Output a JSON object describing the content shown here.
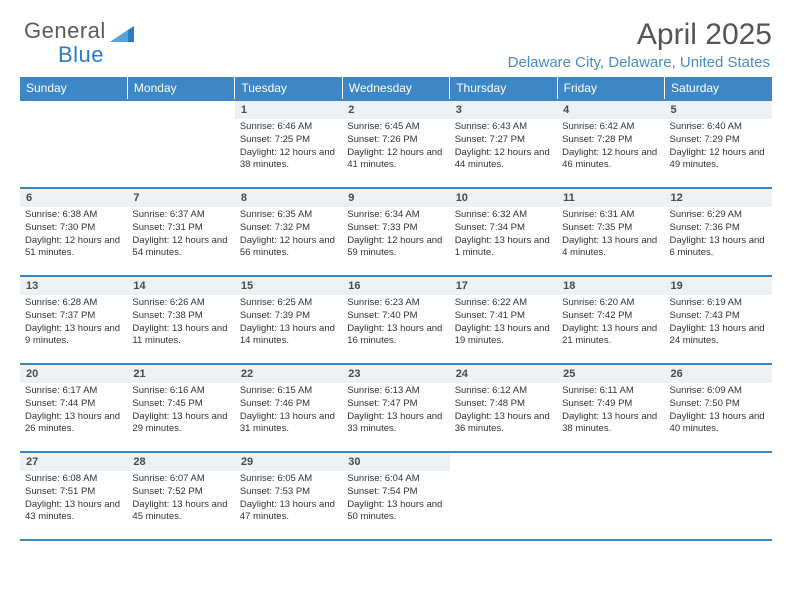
{
  "brand": {
    "part1": "General",
    "part2": "Blue"
  },
  "title": "April 2025",
  "location": "Delaware City, Delaware, United States",
  "colors": {
    "header_bg": "#3d87c6",
    "header_text": "#ffffff",
    "daynum_bg": "#eef1f3",
    "border": "#3d87c6",
    "location": "#4a8bc2",
    "logo_gray": "#5a5a5a",
    "logo_blue": "#2b7cc0"
  },
  "weekdays": [
    "Sunday",
    "Monday",
    "Tuesday",
    "Wednesday",
    "Thursday",
    "Friday",
    "Saturday"
  ],
  "weeks": [
    [
      {
        "empty": true
      },
      {
        "empty": true
      },
      {
        "num": "1",
        "sunrise": "6:46 AM",
        "sunset": "7:25 PM",
        "daylight": "12 hours and 38 minutes."
      },
      {
        "num": "2",
        "sunrise": "6:45 AM",
        "sunset": "7:26 PM",
        "daylight": "12 hours and 41 minutes."
      },
      {
        "num": "3",
        "sunrise": "6:43 AM",
        "sunset": "7:27 PM",
        "daylight": "12 hours and 44 minutes."
      },
      {
        "num": "4",
        "sunrise": "6:42 AM",
        "sunset": "7:28 PM",
        "daylight": "12 hours and 46 minutes."
      },
      {
        "num": "5",
        "sunrise": "6:40 AM",
        "sunset": "7:29 PM",
        "daylight": "12 hours and 49 minutes."
      }
    ],
    [
      {
        "num": "6",
        "sunrise": "6:38 AM",
        "sunset": "7:30 PM",
        "daylight": "12 hours and 51 minutes."
      },
      {
        "num": "7",
        "sunrise": "6:37 AM",
        "sunset": "7:31 PM",
        "daylight": "12 hours and 54 minutes."
      },
      {
        "num": "8",
        "sunrise": "6:35 AM",
        "sunset": "7:32 PM",
        "daylight": "12 hours and 56 minutes."
      },
      {
        "num": "9",
        "sunrise": "6:34 AM",
        "sunset": "7:33 PM",
        "daylight": "12 hours and 59 minutes."
      },
      {
        "num": "10",
        "sunrise": "6:32 AM",
        "sunset": "7:34 PM",
        "daylight": "13 hours and 1 minute."
      },
      {
        "num": "11",
        "sunrise": "6:31 AM",
        "sunset": "7:35 PM",
        "daylight": "13 hours and 4 minutes."
      },
      {
        "num": "12",
        "sunrise": "6:29 AM",
        "sunset": "7:36 PM",
        "daylight": "13 hours and 6 minutes."
      }
    ],
    [
      {
        "num": "13",
        "sunrise": "6:28 AM",
        "sunset": "7:37 PM",
        "daylight": "13 hours and 9 minutes."
      },
      {
        "num": "14",
        "sunrise": "6:26 AM",
        "sunset": "7:38 PM",
        "daylight": "13 hours and 11 minutes."
      },
      {
        "num": "15",
        "sunrise": "6:25 AM",
        "sunset": "7:39 PM",
        "daylight": "13 hours and 14 minutes."
      },
      {
        "num": "16",
        "sunrise": "6:23 AM",
        "sunset": "7:40 PM",
        "daylight": "13 hours and 16 minutes."
      },
      {
        "num": "17",
        "sunrise": "6:22 AM",
        "sunset": "7:41 PM",
        "daylight": "13 hours and 19 minutes."
      },
      {
        "num": "18",
        "sunrise": "6:20 AM",
        "sunset": "7:42 PM",
        "daylight": "13 hours and 21 minutes."
      },
      {
        "num": "19",
        "sunrise": "6:19 AM",
        "sunset": "7:43 PM",
        "daylight": "13 hours and 24 minutes."
      }
    ],
    [
      {
        "num": "20",
        "sunrise": "6:17 AM",
        "sunset": "7:44 PM",
        "daylight": "13 hours and 26 minutes."
      },
      {
        "num": "21",
        "sunrise": "6:16 AM",
        "sunset": "7:45 PM",
        "daylight": "13 hours and 29 minutes."
      },
      {
        "num": "22",
        "sunrise": "6:15 AM",
        "sunset": "7:46 PM",
        "daylight": "13 hours and 31 minutes."
      },
      {
        "num": "23",
        "sunrise": "6:13 AM",
        "sunset": "7:47 PM",
        "daylight": "13 hours and 33 minutes."
      },
      {
        "num": "24",
        "sunrise": "6:12 AM",
        "sunset": "7:48 PM",
        "daylight": "13 hours and 36 minutes."
      },
      {
        "num": "25",
        "sunrise": "6:11 AM",
        "sunset": "7:49 PM",
        "daylight": "13 hours and 38 minutes."
      },
      {
        "num": "26",
        "sunrise": "6:09 AM",
        "sunset": "7:50 PM",
        "daylight": "13 hours and 40 minutes."
      }
    ],
    [
      {
        "num": "27",
        "sunrise": "6:08 AM",
        "sunset": "7:51 PM",
        "daylight": "13 hours and 43 minutes."
      },
      {
        "num": "28",
        "sunrise": "6:07 AM",
        "sunset": "7:52 PM",
        "daylight": "13 hours and 45 minutes."
      },
      {
        "num": "29",
        "sunrise": "6:05 AM",
        "sunset": "7:53 PM",
        "daylight": "13 hours and 47 minutes."
      },
      {
        "num": "30",
        "sunrise": "6:04 AM",
        "sunset": "7:54 PM",
        "daylight": "13 hours and 50 minutes."
      },
      {
        "empty": true
      },
      {
        "empty": true
      },
      {
        "empty": true
      }
    ]
  ],
  "labels": {
    "sunrise_prefix": "Sunrise: ",
    "sunset_prefix": "Sunset: ",
    "daylight_prefix": "Daylight: "
  }
}
